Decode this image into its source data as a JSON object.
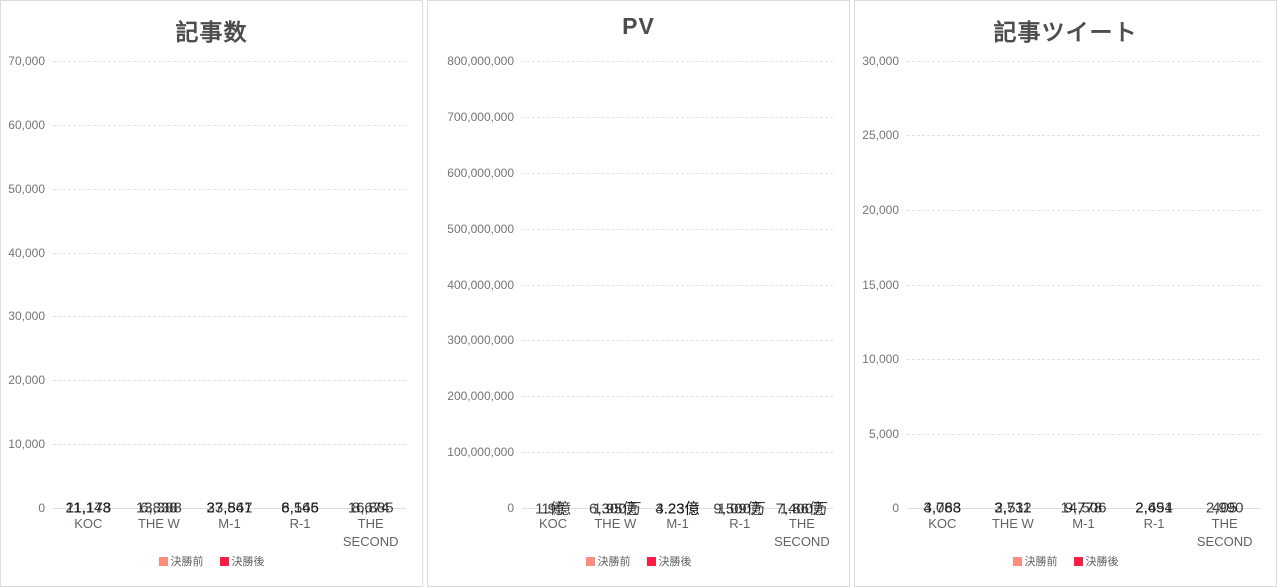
{
  "colors": {
    "before": "#FC8C7E",
    "after": "#FB1D46"
  },
  "legend": {
    "items": [
      {
        "label": "決勝前",
        "color_key": "before"
      },
      {
        "label": "決勝後",
        "color_key": "after"
      }
    ]
  },
  "chart_data": [
    {
      "type": "bar",
      "stacked": true,
      "title": "記事数",
      "ylim": [
        0,
        70000
      ],
      "yticks": [
        "70,000",
        "60,000",
        "50,000",
        "40,000",
        "30,000",
        "20,000",
        "10,000",
        "0"
      ],
      "grid": true,
      "legend_position": "bottom",
      "categories": [
        "KOC",
        "THE W",
        "M-1",
        "R-1",
        "THE SECOND"
      ],
      "series": [
        {
          "name": "決勝前",
          "values": [
            11143,
            6838,
            23547,
            6165,
            8674
          ],
          "labels": [
            "11,143",
            "6,838",
            "23,547",
            "6,165",
            "8,674"
          ]
        },
        {
          "name": "決勝後",
          "values": [
            21178,
            13388,
            37861,
            8546,
            16885
          ],
          "labels": [
            "21,178",
            "13,388",
            "37,861",
            "8,546",
            "16,885"
          ]
        }
      ]
    },
    {
      "type": "bar",
      "stacked": true,
      "title": "PV",
      "ylim": [
        0,
        800000000
      ],
      "yticks": [
        "800,000,000",
        "700,000,000",
        "600,000,000",
        "500,000,000",
        "400,000,000",
        "300,000,000",
        "200,000,000",
        "100,000,000",
        "0"
      ],
      "grid": true,
      "legend_position": "bottom",
      "categories": [
        "KOC",
        "THE W",
        "M-1",
        "R-1",
        "THE SECOND"
      ],
      "series": [
        {
          "name": "決勝前",
          "values": [
            100000000,
            63000000,
            323000000,
            95000000,
            74000000
          ],
          "labels": [
            "1億",
            "6,300万",
            "3.23億",
            "9,500万",
            "7,400万"
          ]
        },
        {
          "name": "決勝後",
          "values": [
            190000000,
            195000000,
            423000000,
            109000000,
            186000000
          ],
          "labels": [
            "1.9億",
            "1.95億",
            "4.23億",
            "1.09億",
            "1.86億"
          ]
        }
      ]
    },
    {
      "type": "bar",
      "stacked": true,
      "title": "記事ツイート",
      "ylim": [
        0,
        30000
      ],
      "yticks": [
        "30,000",
        "25,000",
        "20,000",
        "15,000",
        "10,000",
        "5,000",
        "0"
      ],
      "grid": true,
      "legend_position": "bottom",
      "categories": [
        "KOC",
        "THE W",
        "M-1",
        "R-1",
        "THE SECOND"
      ],
      "series": [
        {
          "name": "決勝前",
          "values": [
            3063,
            2511,
            14506,
            2491,
            405
          ],
          "labels": [
            "3,063",
            "2,511",
            "14,506",
            "2,491",
            "405"
          ]
        },
        {
          "name": "決勝後",
          "values": [
            4788,
            3732,
            9778,
            2654,
            2990
          ],
          "labels": [
            "4,788",
            "3,732",
            "9,778",
            "2,654",
            "2,990"
          ]
        }
      ]
    }
  ]
}
